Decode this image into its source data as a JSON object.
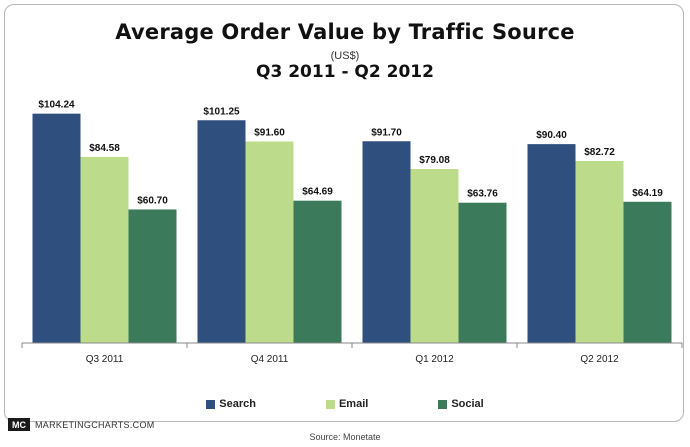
{
  "title": "Average Order Value by Traffic Source",
  "units": "(US$)",
  "subtitle": "Q3 2011 - Q2 2012",
  "chart_data": {
    "type": "bar",
    "title": "Average Order Value by Traffic Source",
    "subtitle": "Q3 2011 - Q2 2012",
    "xlabel": "",
    "ylabel": "",
    "ylim": [
      0,
      110
    ],
    "grid": false,
    "legend_placement": "bottom",
    "categories": [
      "Q3 2011",
      "Q4 2011",
      "Q1 2012",
      "Q2 2012"
    ],
    "series": [
      {
        "name": "Search",
        "color": "#2f4f7f",
        "values": [
          104.24,
          101.25,
          91.7,
          90.4
        ],
        "labels": [
          "$104.24",
          "$101.25",
          "$91.70",
          "$90.40"
        ]
      },
      {
        "name": "Email",
        "color": "#bcdc8c",
        "values": [
          84.58,
          91.6,
          79.08,
          82.72
        ],
        "labels": [
          "$84.58",
          "$91.60",
          "$79.08",
          "$82.72"
        ]
      },
      {
        "name": "Social",
        "color": "#3c7a5c",
        "values": [
          60.7,
          64.69,
          63.76,
          64.19
        ],
        "labels": [
          "$60.70",
          "$64.69",
          "$63.76",
          "$64.19"
        ]
      }
    ]
  },
  "branding": {
    "logo_mark": "MC",
    "logo_text": "MARKETINGCHARTS.COM"
  },
  "source": "Source: Monetate"
}
